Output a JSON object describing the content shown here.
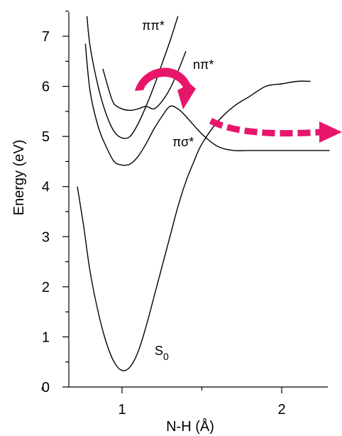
{
  "chart_data": {
    "type": "line",
    "xlabel": "N-H (Å)",
    "ylabel": "Energy (eV)",
    "xlim": [
      0.65,
      2.3
    ],
    "ylim": [
      0,
      7.5
    ],
    "x_ticks": [
      1,
      2
    ],
    "y_ticks": [
      0,
      1,
      2,
      3,
      4,
      5,
      6,
      7
    ],
    "x_minor_ticks": [
      0.5,
      1.5
    ],
    "y_minor_ticks": [
      0.5,
      1.5,
      2.5,
      3.5,
      4.5,
      5.5,
      6.5,
      7.5
    ],
    "series": [
      {
        "name": "S0",
        "label_main": "S",
        "label_sub": "0",
        "color": "#000000",
        "points": [
          [
            0.72,
            4.0
          ],
          [
            0.76,
            3.2
          ],
          [
            0.8,
            2.3
          ],
          [
            0.85,
            1.5
          ],
          [
            0.9,
            0.9
          ],
          [
            0.95,
            0.5
          ],
          [
            1.0,
            0.33
          ],
          [
            1.05,
            0.4
          ],
          [
            1.1,
            0.7
          ],
          [
            1.15,
            1.2
          ],
          [
            1.2,
            1.8
          ],
          [
            1.25,
            2.4
          ],
          [
            1.3,
            3.0
          ],
          [
            1.35,
            3.6
          ],
          [
            1.4,
            4.1
          ],
          [
            1.45,
            4.5
          ],
          [
            1.5,
            4.85
          ],
          [
            1.6,
            5.3
          ],
          [
            1.7,
            5.6
          ],
          [
            1.8,
            5.8
          ],
          [
            1.9,
            6.0
          ],
          [
            2.0,
            6.05
          ],
          [
            2.1,
            6.1
          ],
          [
            2.18,
            6.1
          ]
        ]
      },
      {
        "name": "πσ*",
        "color": "#000000",
        "points": [
          [
            0.77,
            6.85
          ],
          [
            0.8,
            5.9
          ],
          [
            0.85,
            5.2
          ],
          [
            0.9,
            4.8
          ],
          [
            0.95,
            4.5
          ],
          [
            1.0,
            4.43
          ],
          [
            1.05,
            4.45
          ],
          [
            1.1,
            4.6
          ],
          [
            1.15,
            4.85
          ],
          [
            1.2,
            5.15
          ],
          [
            1.25,
            5.4
          ],
          [
            1.3,
            5.6
          ],
          [
            1.35,
            5.55
          ],
          [
            1.4,
            5.4
          ],
          [
            1.5,
            5.05
          ],
          [
            1.6,
            4.8
          ],
          [
            1.7,
            4.72
          ],
          [
            1.8,
            4.72
          ],
          [
            2.0,
            4.72
          ],
          [
            2.3,
            4.72
          ]
        ]
      },
      {
        "name": "nπ*",
        "color": "#000000",
        "points": [
          [
            0.88,
            6.35
          ],
          [
            0.92,
            5.9
          ],
          [
            0.95,
            5.65
          ],
          [
            1.0,
            5.55
          ],
          [
            1.05,
            5.52
          ],
          [
            1.1,
            5.55
          ],
          [
            1.15,
            5.6
          ],
          [
            1.2,
            5.55
          ],
          [
            1.25,
            5.7
          ],
          [
            1.3,
            5.95
          ],
          [
            1.35,
            6.3
          ],
          [
            1.4,
            6.7
          ]
        ]
      },
      {
        "name": "ππ*",
        "color": "#000000",
        "points": [
          [
            0.78,
            7.4
          ],
          [
            0.8,
            6.8
          ],
          [
            0.85,
            6.0
          ],
          [
            0.9,
            5.45
          ],
          [
            0.95,
            5.1
          ],
          [
            1.0,
            4.97
          ],
          [
            1.05,
            5.0
          ],
          [
            1.1,
            5.25
          ],
          [
            1.15,
            5.6
          ],
          [
            1.2,
            6.0
          ],
          [
            1.25,
            6.45
          ],
          [
            1.3,
            6.9
          ],
          [
            1.35,
            7.4
          ]
        ]
      }
    ],
    "annotations": [
      {
        "name": "curve-arrow",
        "color": "#e8166a",
        "description": "curved arrow from ππ* over to nπ*"
      },
      {
        "name": "dissociation-arrow",
        "color": "#e8166a",
        "description": "dashed arrow along πσ* toward large N-H"
      }
    ]
  }
}
